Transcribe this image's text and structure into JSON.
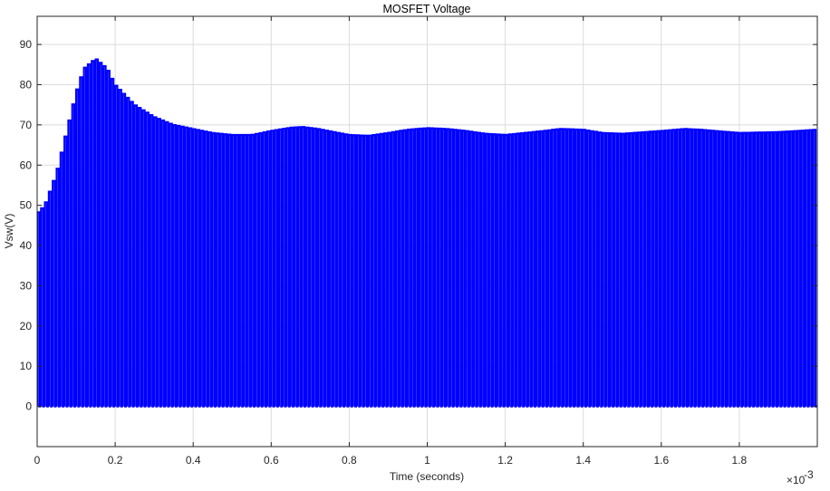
{
  "chart_data": {
    "type": "line",
    "title": "MOSFET Voltage",
    "xlabel": "Time (seconds)",
    "ylabel": "Vsw(V)",
    "x_multiplier": "×10",
    "x_multiplier_exp": "-3",
    "xlim": [
      0,
      2.0
    ],
    "ylim": [
      -10,
      97
    ],
    "xticks": [
      0,
      0.2,
      0.4,
      0.6,
      0.8,
      1,
      1.2,
      1.4,
      1.6,
      1.8
    ],
    "xtick_labels": [
      "0",
      "0.2",
      "0.4",
      "0.6",
      "0.8",
      "1",
      "1.2",
      "1.4",
      "1.6",
      "1.8"
    ],
    "yticks": [
      0,
      10,
      20,
      30,
      40,
      50,
      60,
      70,
      80,
      90
    ],
    "ytick_labels": [
      "0",
      "10",
      "20",
      "30",
      "40",
      "50",
      "60",
      "70",
      "80",
      "90"
    ],
    "grid": true,
    "series": [
      {
        "color": "#0000ff",
        "style": "switching square wave",
        "low_level": 0,
        "high_envelope": {
          "x": [
            0,
            0.02,
            0.05,
            0.08,
            0.1,
            0.12,
            0.15,
            0.18,
            0.2,
            0.25,
            0.3,
            0.35,
            0.4,
            0.45,
            0.5,
            0.55,
            0.6,
            0.65,
            0.68,
            0.72,
            0.8,
            0.85,
            0.9,
            0.95,
            1.0,
            1.05,
            1.1,
            1.15,
            1.2,
            1.3,
            1.34,
            1.4,
            1.45,
            1.5,
            1.6,
            1.66,
            1.7,
            1.8,
            1.9,
            2.0
          ],
          "y": [
            48,
            50,
            58,
            70,
            78,
            84,
            86.5,
            84,
            80,
            75,
            72,
            70,
            69,
            68,
            67.5,
            67.5,
            68.5,
            69.3,
            69.5,
            69,
            67.5,
            67.3,
            68,
            68.8,
            69.2,
            69,
            68.5,
            67.8,
            67.5,
            68.5,
            69,
            68.8,
            68,
            67.8,
            68.5,
            69,
            68.8,
            68,
            68.2,
            68.8
          ]
        }
      }
    ]
  }
}
